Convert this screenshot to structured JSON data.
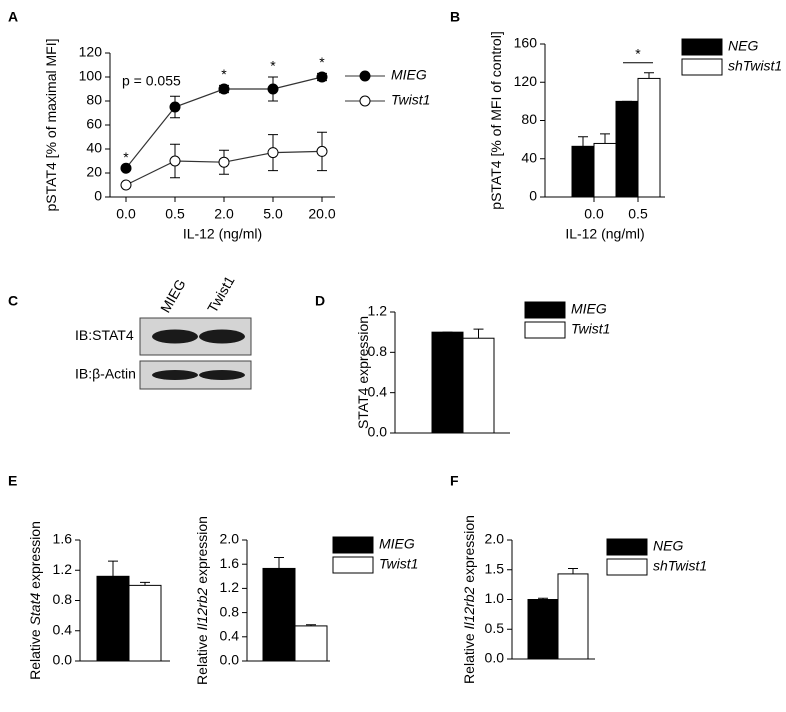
{
  "chart_data": [
    {
      "panel": "A",
      "type": "line",
      "categories": [
        "0.0",
        "0.5",
        "2.0",
        "5.0",
        "20.0"
      ],
      "series": [
        {
          "name": "MIEG",
          "color": "#000000",
          "values": [
            24,
            75,
            90,
            90,
            100
          ],
          "errors": [
            0,
            9,
            3,
            10,
            3
          ]
        },
        {
          "name": "Twist1",
          "color": "#ffffff",
          "values": [
            10,
            30,
            29,
            37,
            38
          ],
          "errors": [
            0,
            14,
            10,
            15,
            16
          ]
        }
      ],
      "significance": [
        "*",
        null,
        "*",
        "*",
        "*"
      ],
      "annotation": "p = 0.055",
      "ylabel": [
        "pSTAT4 [% of maximal MFI]"
      ],
      "xlabel": "IL-12 (ng/ml)",
      "ylim": [
        0,
        120
      ],
      "yticks": [
        0,
        20,
        40,
        60,
        80,
        100,
        120
      ],
      "legend": true
    },
    {
      "panel": "B",
      "type": "bar",
      "categories": [
        "0.0",
        "0.5"
      ],
      "series": [
        {
          "name": "NEG",
          "color": "#000000",
          "values": [
            53,
            100
          ],
          "errors": [
            10,
            0
          ]
        },
        {
          "name": "shTwist1",
          "color": "#ffffff",
          "values": [
            56,
            124
          ],
          "errors": [
            10,
            6
          ]
        }
      ],
      "significance": [
        null,
        "*"
      ],
      "ylabel": [
        "pSTAT4 [% of MFI of control]"
      ],
      "xlabel": "IL-12 (ng/ml)",
      "ylim": [
        0,
        160
      ],
      "yticks": [
        0,
        40,
        80,
        120,
        160
      ],
      "legend": true
    },
    {
      "panel": "C",
      "type": "blot",
      "lanes": [
        "MIEG",
        "Twist1"
      ],
      "rows": [
        "IB:STAT4",
        "IB:β-Actin"
      ]
    },
    {
      "panel": "D",
      "type": "bar",
      "categories": [
        null
      ],
      "series": [
        {
          "name": "MIEG",
          "color": "#000000",
          "values": [
            1.0
          ],
          "errors": [
            0
          ]
        },
        {
          "name": "Twist1",
          "color": "#ffffff",
          "values": [
            0.94
          ],
          "errors": [
            0.09
          ]
        }
      ],
      "ylabel": [
        "STAT4 expression"
      ],
      "ylim": [
        0,
        1.2
      ],
      "yticks": [
        {
          "value": 0,
          "label": "0.0"
        },
        0.4,
        0.8,
        1.2
      ],
      "legend": true
    },
    {
      "panel": "E",
      "type": "bar",
      "categories": [
        null
      ],
      "series": [
        {
          "name": "MIEG",
          "color": "#000000",
          "values": [
            1.12
          ],
          "errors": [
            0.2
          ]
        },
        {
          "name": "Twist1",
          "color": "#ffffff",
          "values": [
            1.0
          ],
          "errors": [
            0.04
          ]
        }
      ],
      "ylabel": [
        "Relative ",
        "Stat4",
        " expression"
      ],
      "ylim": [
        0,
        1.6
      ],
      "yticks": [
        {
          "value": 0,
          "label": "0.0"
        },
        0.4,
        0.8,
        1.2,
        1.6
      ],
      "legend": false
    },
    {
      "type": "bar",
      "categories": [
        null
      ],
      "series": [
        {
          "name": "MIEG",
          "color": "#000000",
          "values": [
            1.53
          ],
          "errors": [
            0.18
          ]
        },
        {
          "name": "Twist1",
          "color": "#ffffff",
          "values": [
            0.58
          ],
          "errors": [
            0.02
          ]
        }
      ],
      "ylabel": [
        "Relative ",
        "Il12rb2",
        " expression"
      ],
      "ylim": [
        0,
        2
      ],
      "yticks": [
        {
          "value": 0,
          "label": "0.0"
        },
        0.4,
        0.8,
        1.2,
        1.6,
        {
          "value": 2,
          "label": "2.0"
        }
      ],
      "legend": true
    },
    {
      "panel": "F",
      "type": "bar",
      "categories": [
        null
      ],
      "series": [
        {
          "name": "NEG",
          "color": "#000000",
          "values": [
            1.0
          ],
          "errors": [
            0.02
          ]
        },
        {
          "name": "shTwist1",
          "color": "#ffffff",
          "values": [
            1.43
          ],
          "errors": [
            0.09
          ]
        }
      ],
      "ylabel": [
        "Relative ",
        "Il12rb2",
        " expression"
      ],
      "ylim": [
        0,
        2
      ],
      "yticks": [
        {
          "value": 0,
          "label": "0.0"
        },
        0.5,
        {
          "value": 1,
          "label": "1.0"
        },
        1.5,
        {
          "value": 2,
          "label": "2.0"
        }
      ],
      "legend": true
    }
  ]
}
